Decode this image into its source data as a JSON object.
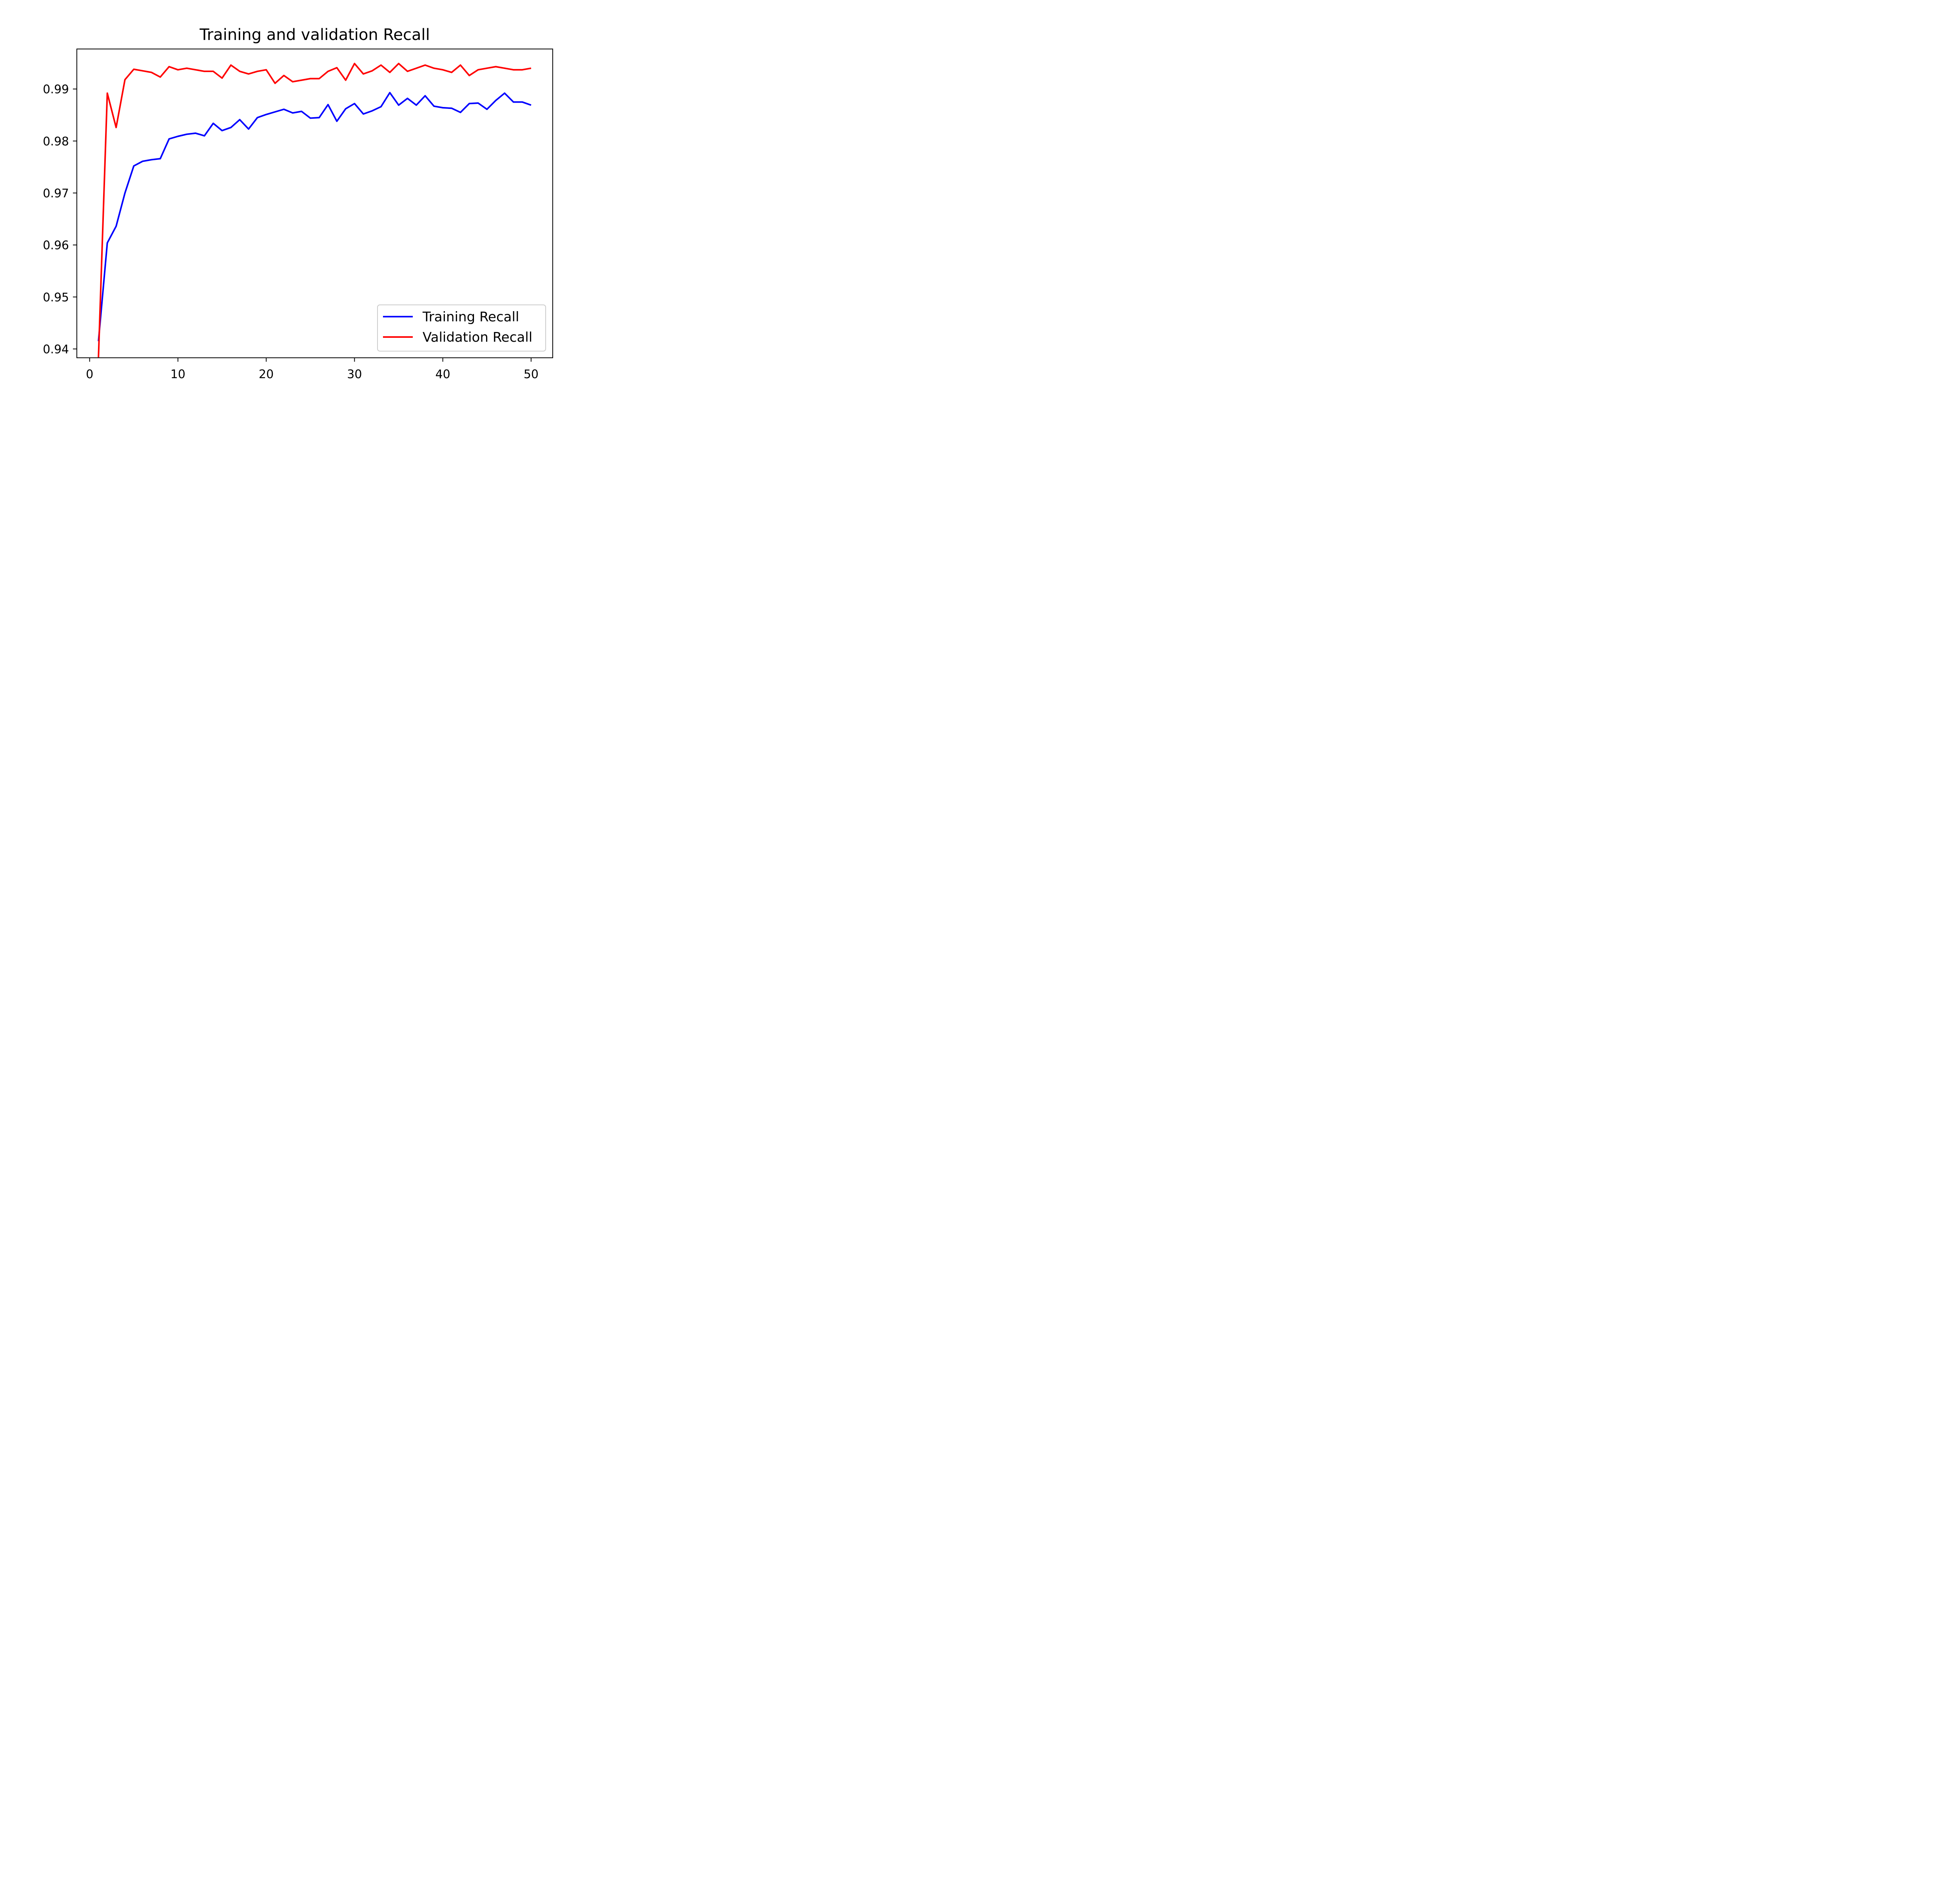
{
  "chart_data": {
    "type": "line",
    "title": "Training and validation Recall",
    "xlabel": "",
    "ylabel": "",
    "xlim": [
      -1.45,
      52.45
    ],
    "ylim": [
      0.9383,
      0.9977
    ],
    "grid": false,
    "legend_position": "lower-right",
    "x_ticks": [
      0,
      10,
      20,
      30,
      40,
      50
    ],
    "x_tick_labels": [
      "0",
      "10",
      "20",
      "30",
      "40",
      "50"
    ],
    "y_ticks": [
      0.94,
      0.95,
      0.96,
      0.97,
      0.98,
      0.99
    ],
    "y_tick_labels": [
      "0.94",
      "0.95",
      "0.96",
      "0.97",
      "0.98",
      "0.99"
    ],
    "x": [
      1,
      2,
      3,
      4,
      5,
      6,
      7,
      8,
      9,
      10,
      11,
      12,
      13,
      14,
      15,
      16,
      17,
      18,
      19,
      20,
      21,
      22,
      23,
      24,
      25,
      26,
      27,
      28,
      29,
      30,
      31,
      32,
      33,
      34,
      35,
      36,
      37,
      38,
      39,
      40,
      41,
      42,
      43,
      44,
      45,
      46,
      47,
      48,
      49,
      50
    ],
    "series": [
      {
        "name": "Training Recall",
        "color": "#0000ff",
        "values": [
          0.9415,
          0.9604,
          0.9636,
          0.97,
          0.9752,
          0.9761,
          0.9764,
          0.9766,
          0.9804,
          0.9809,
          0.9813,
          0.9815,
          0.981,
          0.9834,
          0.982,
          0.9826,
          0.9841,
          0.9823,
          0.9845,
          0.9851,
          0.9856,
          0.9861,
          0.9854,
          0.9857,
          0.9844,
          0.9845,
          0.987,
          0.9838,
          0.9862,
          0.9872,
          0.9852,
          0.9858,
          0.9866,
          0.9893,
          0.9869,
          0.9882,
          0.9869,
          0.9887,
          0.9867,
          0.9864,
          0.9863,
          0.9855,
          0.9872,
          0.9873,
          0.9861,
          0.9878,
          0.9892,
          0.9875,
          0.9875,
          0.9869
        ]
      },
      {
        "name": "Validation Recall",
        "color": "#ff0000",
        "values": [
          0.9384,
          0.9892,
          0.9826,
          0.9918,
          0.9938,
          0.9935,
          0.9932,
          0.9923,
          0.9943,
          0.9937,
          0.994,
          0.9937,
          0.9934,
          0.9934,
          0.9921,
          0.9946,
          0.9934,
          0.9929,
          0.9934,
          0.9937,
          0.9911,
          0.9926,
          0.9914,
          0.9917,
          0.992,
          0.992,
          0.9934,
          0.9941,
          0.9917,
          0.9949,
          0.9929,
          0.9935,
          0.9946,
          0.9932,
          0.9949,
          0.9934,
          0.994,
          0.9946,
          0.994,
          0.9937,
          0.9932,
          0.9946,
          0.9926,
          0.9937,
          0.994,
          0.9943,
          0.994,
          0.9937,
          0.9937,
          0.994
        ]
      }
    ]
  }
}
